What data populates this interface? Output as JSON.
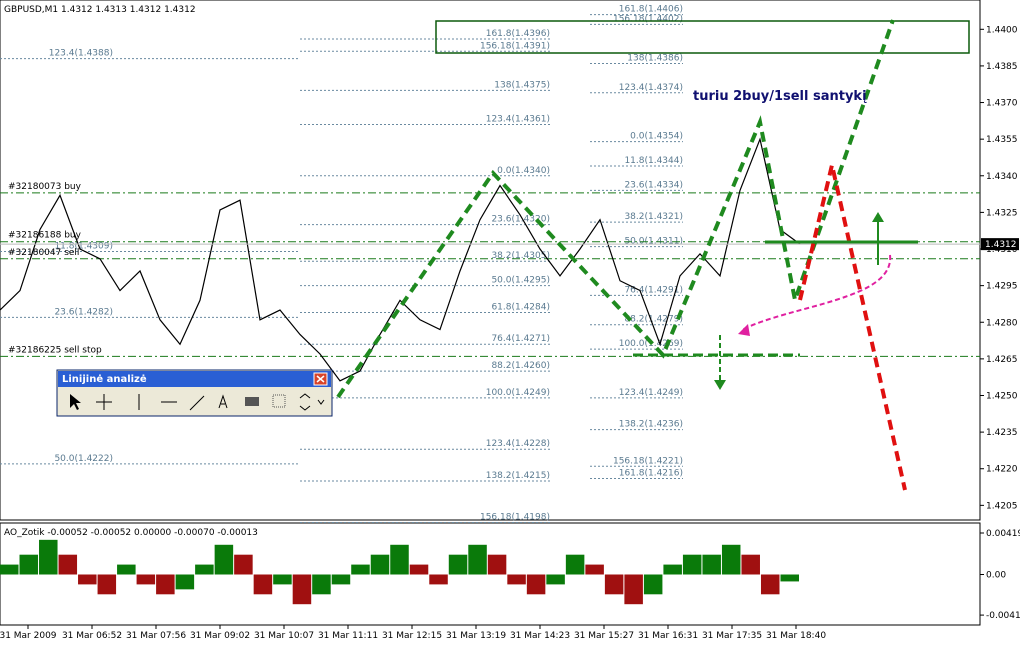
{
  "price_chart": {
    "header": "GBPUSD,M1  1.4312 1.4313 1.4312 1.4312",
    "annotation": "turiu 2buy/1sell santykį",
    "ylim": [
      1.4199,
      1.4412
    ],
    "yticks": [
      {
        "value": 1.44,
        "label": "1.4400"
      },
      1.4385,
      {
        "value": 1.437,
        "label": "1.4370"
      },
      1.4355,
      {
        "value": 1.434,
        "label": "1.4340"
      },
      1.4325,
      {
        "value": 1.431,
        "label": "1.4310"
      },
      1.4295,
      {
        "value": 1.428,
        "label": "1.4280"
      },
      1.4265,
      {
        "value": 1.425,
        "label": "1.4250"
      },
      1.4235,
      {
        "value": 1.422,
        "label": "1.4220"
      },
      1.4205
    ],
    "last_price": 1.4312,
    "close": [
      1.4285,
      1.4293,
      1.4318,
      1.4332,
      1.431,
      1.4306,
      1.4293,
      1.4301,
      1.4281,
      1.4271,
      1.4289,
      1.4326,
      1.433,
      1.4281,
      1.4285,
      1.4275,
      1.4267,
      1.4256,
      1.426,
      1.4275,
      1.4289,
      1.4281,
      1.4277,
      1.4301,
      1.4322,
      1.4336,
      1.4324,
      1.431,
      1.4299,
      1.431,
      1.4322,
      1.4297,
      1.4293,
      1.4271,
      1.4299,
      1.4308,
      1.4299,
      1.4334,
      1.4355,
      1.4318,
      1.4312
    ],
    "order_lines": [
      {
        "label": "#32180073 buy",
        "price": 1.4333
      },
      {
        "label": "#32186188 buy",
        "price": 1.4313
      },
      {
        "label": "#32180047 sell",
        "price": 1.4306
      },
      {
        "label": "#32186225 sell stop",
        "price": 1.4266
      }
    ],
    "fib_sets": [
      {
        "levels": [
          {
            "label": "123.4(1.4388)",
            "price": 1.4388
          },
          {
            "label": "11.8(1.4309)",
            "price": 1.4309
          },
          {
            "label": "23.6(1.4282)",
            "price": 1.4282
          },
          {
            "label": "50.0(1.4222)",
            "price": 1.4222
          }
        ]
      },
      {
        "levels": [
          {
            "label": "161.8(1.4396)",
            "price": 1.4396
          },
          {
            "label": "156.18(1.4391)",
            "price": 1.4391
          },
          {
            "label": "138(1.4375)",
            "price": 1.4375
          },
          {
            "label": "123.4(1.4361)",
            "price": 1.4361
          },
          {
            "label": "0.0(1.4340)",
            "price": 1.434
          },
          {
            "label": "23.6(1.4320)",
            "price": 1.432
          },
          {
            "label": "38.2(1.4305)",
            "price": 1.4305
          },
          {
            "label": "50.0(1.4295)",
            "price": 1.4295
          },
          {
            "label": "61.8(1.4284)",
            "price": 1.4284
          },
          {
            "label": "76.4(1.4271)",
            "price": 1.4271
          },
          {
            "label": "88.2(1.4260)",
            "price": 1.426
          },
          {
            "label": "100.0(1.4249)",
            "price": 1.4249
          },
          {
            "label": "123.4(1.4228)",
            "price": 1.4228
          },
          {
            "label": "138.2(1.4215)",
            "price": 1.4215
          },
          {
            "label": "156.18(1.4198)",
            "price": 1.4198
          }
        ]
      },
      {
        "levels": [
          {
            "label": "161.8(1.4406)",
            "price": 1.4406
          },
          {
            "label": "156.18(1.4402)",
            "price": 1.4402
          },
          {
            "label": "138(1.4386)",
            "price": 1.4386
          },
          {
            "label": "123.4(1.4374)",
            "price": 1.4374
          },
          {
            "label": "0.0(1.4354)",
            "price": 1.4354
          },
          {
            "label": "11.8(1.4344)",
            "price": 1.4344
          },
          {
            "label": "23.6(1.4334)",
            "price": 1.4334
          },
          {
            "label": "38.2(1.4321)",
            "price": 1.4321
          },
          {
            "label": "50.0(1.4311)",
            "price": 1.4311
          },
          {
            "label": "76.4(1.4291)",
            "price": 1.4291
          },
          {
            "label": "88.2(1.4279)",
            "price": 1.4279
          },
          {
            "label": "100.0(1.4269)",
            "price": 1.4269
          },
          {
            "label": "123.4(1.4249)",
            "price": 1.4249
          },
          {
            "label": "138.2(1.4236)",
            "price": 1.4236
          },
          {
            "label": "156.18(1.4221)",
            "price": 1.4221
          },
          {
            "label": "161.8(1.4216)",
            "price": 1.4216
          }
        ]
      }
    ]
  },
  "oscillator": {
    "header": "AO_Zotik -0.00052 -0.00052 0.00000 -0.00070 -0.00013",
    "ylim": [
      -0.0051,
      0.0052
    ],
    "yticks": [
      0.00419,
      {
        "value": 0,
        "label": "0.00"
      },
      -0.0041
    ],
    "values": [
      0.001,
      0.002,
      0.0035,
      0.002,
      -0.001,
      -0.002,
      0.001,
      -0.001,
      -0.002,
      -0.0015,
      0.001,
      0.003,
      0.002,
      -0.002,
      -0.001,
      -0.003,
      -0.002,
      -0.001,
      0.001,
      0.002,
      0.003,
      0.001,
      -0.001,
      0.002,
      0.003,
      0.002,
      -0.001,
      -0.002,
      -0.001,
      0.002,
      0.001,
      -0.002,
      -0.003,
      -0.002,
      0.001,
      0.002,
      0.002,
      0.003,
      0.002,
      -0.002,
      -0.0007
    ]
  },
  "time_axis": {
    "labels": [
      "31 Mar 2009",
      "31 Mar 06:52",
      "31 Mar 07:56",
      "31 Mar 09:02",
      "31 Mar 10:07",
      "31 Mar 11:11",
      "31 Mar 12:15",
      "31 Mar 13:19",
      "31 Mar 14:23",
      "31 Mar 15:27",
      "31 Mar 16:31",
      "31 Mar 17:35",
      "31 Mar 18:40"
    ]
  },
  "toolbar": {
    "title": "Linijinė analizė"
  }
}
